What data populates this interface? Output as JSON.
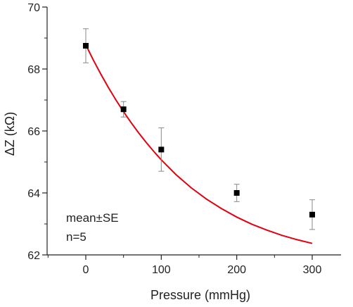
{
  "chart_data": {
    "type": "scatter",
    "title": "",
    "xlabel": "Pressure (mmHg)",
    "ylabel": "ΔZ (kΩ)",
    "x_tick_labels": [
      "0",
      "100",
      "200",
      "300"
    ],
    "y_tick_labels": [
      "62",
      "64",
      "66",
      "68",
      "70"
    ],
    "x_ticks": [
      0,
      100,
      200,
      300
    ],
    "y_ticks": [
      62,
      64,
      66,
      68,
      70
    ],
    "ylim": [
      62,
      70
    ],
    "grid": false,
    "series": [
      {
        "x": [
          0,
          50,
          100,
          200,
          300
        ],
        "y": [
          68.75,
          66.7,
          65.4,
          64.0,
          63.3
        ],
        "error": [
          0.55,
          0.25,
          0.7,
          0.28,
          0.48
        ],
        "marker": "square",
        "color": "#000000"
      }
    ],
    "fit_curve": {
      "type": "exponential decay",
      "color": "#e3000f",
      "samples_x": [
        0,
        10,
        20,
        30,
        40,
        50,
        60,
        70,
        80,
        90,
        100,
        120,
        140,
        160,
        180,
        200,
        220,
        240,
        260,
        280,
        300
      ],
      "samples_y": [
        68.78,
        68.29,
        67.83,
        67.4,
        67.0,
        66.62,
        66.27,
        65.94,
        65.63,
        65.34,
        65.07,
        64.58,
        64.16,
        63.8,
        63.49,
        63.22,
        62.99,
        62.8,
        62.63,
        62.49,
        62.37
      ]
    },
    "annotations": [
      "mean±SE",
      "n=5"
    ]
  }
}
